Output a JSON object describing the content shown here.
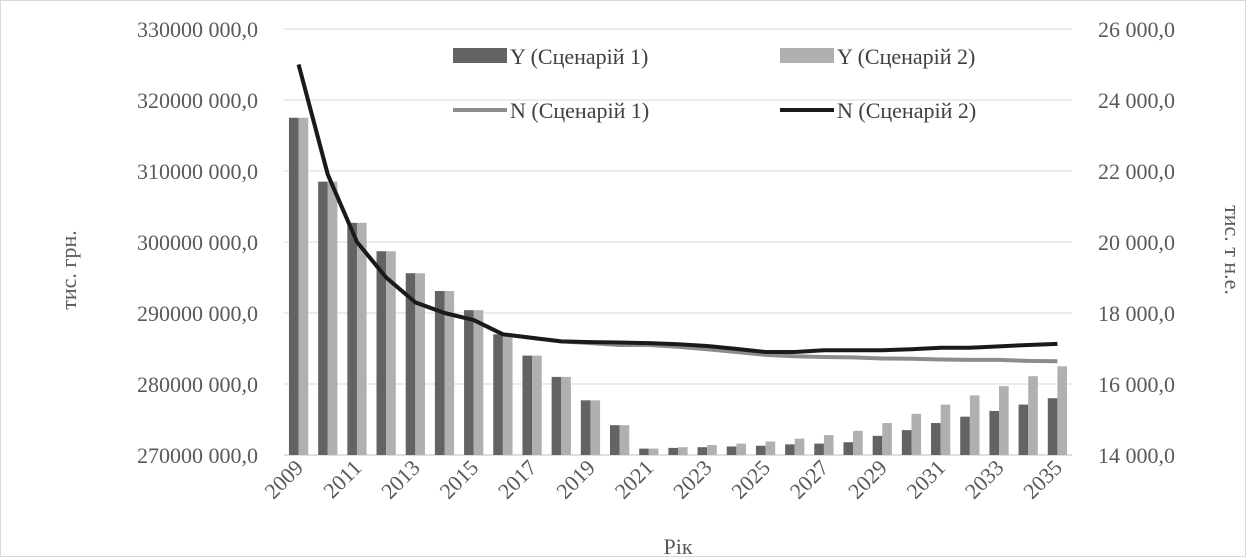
{
  "chart_data": {
    "type": "bar",
    "title": "",
    "xlabel": "Рік",
    "ylabel_left": "тис. грн.",
    "ylabel_right": "тис. т н.е.",
    "ylim_left": [
      270000000,
      330000000
    ],
    "ylim_right": [
      14000,
      26000
    ],
    "left_ticks": [
      "270000 000,0",
      "280000 000,0",
      "290000 000,0",
      "300000 000,0",
      "310000 000,0",
      "320000 000,0",
      "330000 000,0"
    ],
    "right_ticks": [
      "14 000,0",
      "16 000,0",
      "18 000,0",
      "20 000,0",
      "22 000,0",
      "24 000,0",
      "26 000,0"
    ],
    "x_tick_labels": [
      "2009",
      "2011",
      "2013",
      "2015",
      "2017",
      "2019",
      "2021",
      "2023",
      "2025",
      "2027",
      "2029",
      "2031",
      "2033",
      "2035"
    ],
    "categories": [
      2009,
      2010,
      2011,
      2012,
      2013,
      2014,
      2015,
      2016,
      2017,
      2018,
      2019,
      2020,
      2021,
      2022,
      2023,
      2024,
      2025,
      2026,
      2027,
      2028,
      2029,
      2030,
      2031,
      2032,
      2033,
      2034,
      2035
    ],
    "grid": true,
    "legend_position": "top",
    "bar_series": [
      {
        "name": "Y (Сценарій 1)",
        "color": "#636363",
        "axis": "left",
        "values": [
          317500000,
          308500000,
          302700000,
          298700000,
          295600000,
          293100000,
          290400000,
          287000000,
          284000000,
          281000000,
          277700000,
          274200000,
          270900000,
          271000000,
          271100000,
          271200000,
          271300000,
          271500000,
          271600000,
          271800000,
          272700000,
          273500000,
          274500000,
          275400000,
          276200000,
          277100000,
          278000000
        ]
      },
      {
        "name": "Y (Сценарій 2)",
        "color": "#b0b0b0",
        "axis": "left",
        "values": [
          317500000,
          308500000,
          302700000,
          298700000,
          295600000,
          293100000,
          290400000,
          287000000,
          284000000,
          281000000,
          277700000,
          274200000,
          270900000,
          271100000,
          271400000,
          271600000,
          271900000,
          272300000,
          272800000,
          273400000,
          274500000,
          275800000,
          277100000,
          278400000,
          279700000,
          281100000,
          282500000
        ]
      }
    ],
    "line_series": [
      {
        "name": "N (Сценарій 1)",
        "color": "#8c8c8c",
        "axis": "right",
        "values": [
          25000,
          21900,
          20000,
          19000,
          18300,
          18000,
          17800,
          17400,
          17300,
          17200,
          17150,
          17100,
          17100,
          17050,
          16980,
          16900,
          16820,
          16780,
          16760,
          16750,
          16720,
          16710,
          16690,
          16680,
          16680,
          16650,
          16640
        ]
      },
      {
        "name": "N (Сценарій 2)",
        "color": "#1a1a1a",
        "axis": "right",
        "values": [
          25000,
          21900,
          20000,
          19000,
          18300,
          18000,
          17800,
          17400,
          17300,
          17200,
          17180,
          17170,
          17150,
          17120,
          17070,
          16990,
          16900,
          16900,
          16950,
          16950,
          16950,
          16980,
          17020,
          17020,
          17060,
          17100,
          17130
        ]
      }
    ]
  }
}
